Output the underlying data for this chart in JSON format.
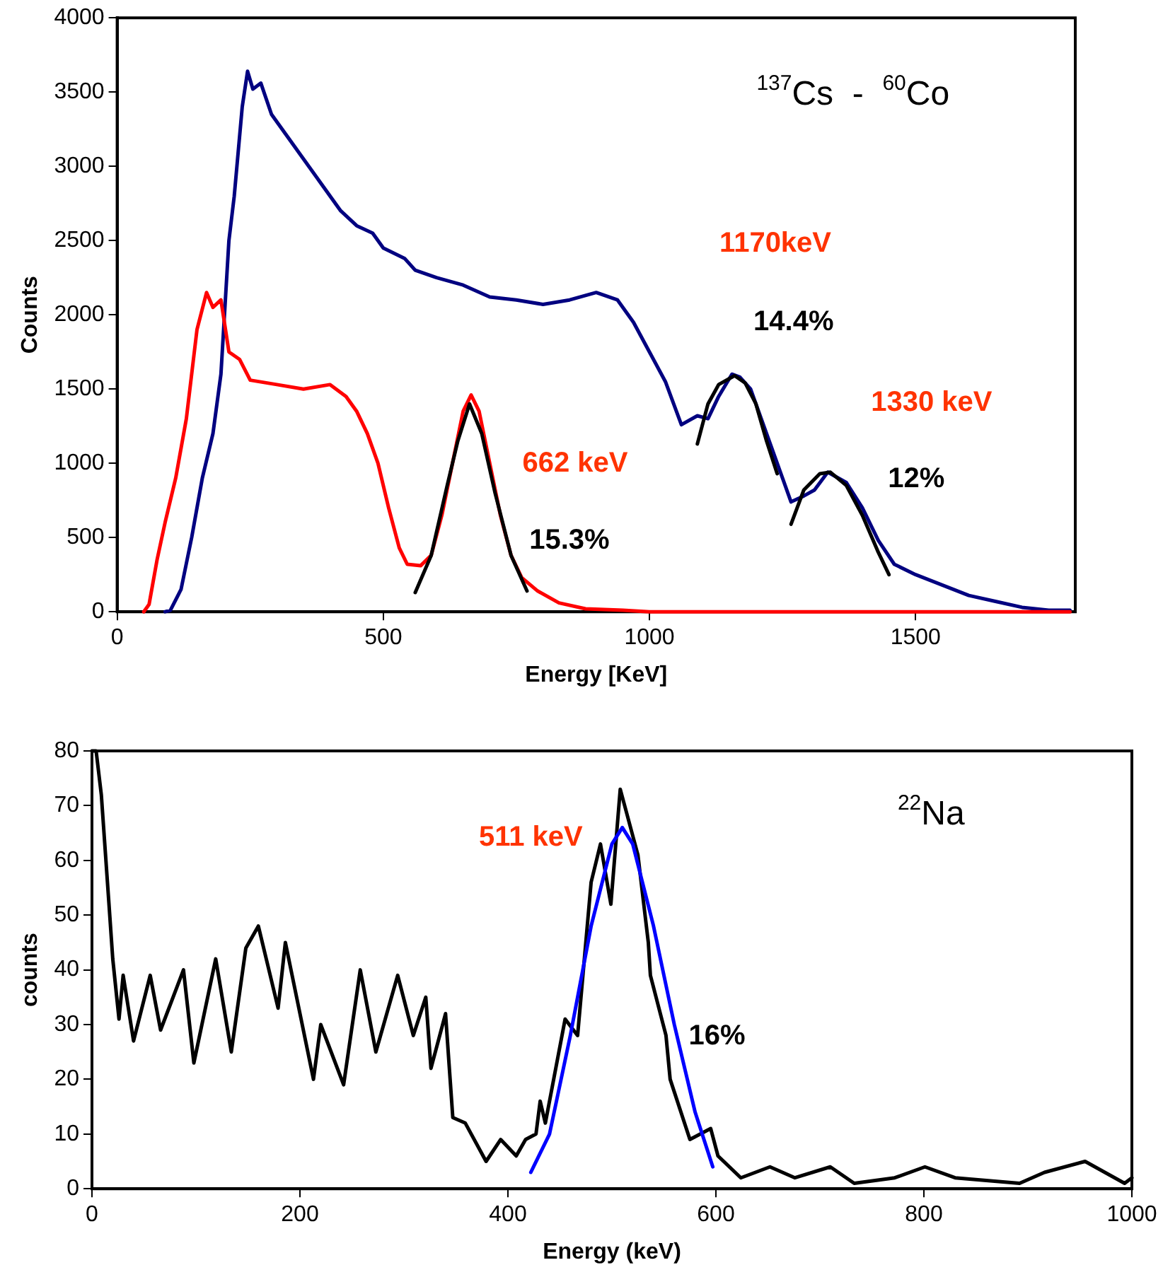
{
  "chart_data": [
    {
      "type": "line",
      "xlabel": "Energy [KeV]",
      "ylabel": "Counts",
      "xlim": [
        0,
        1800
      ],
      "xticks": [
        0,
        500,
        1000,
        1500
      ],
      "ylim": [
        0,
        4000
      ],
      "yticks": [
        0,
        500,
        1000,
        1500,
        2000,
        2500,
        3000,
        3500,
        4000
      ],
      "grid": false,
      "legend": false,
      "marker": "none",
      "line_style": "solid",
      "series": [
        {
          "color": "#000080",
          "x": [
            90,
            100,
            120,
            140,
            160,
            180,
            195,
            210,
            220,
            235,
            245,
            255,
            270,
            290,
            320,
            350,
            380,
            420,
            450,
            480,
            500,
            540,
            560,
            600,
            650,
            700,
            750,
            800,
            850,
            900,
            940,
            970,
            1000,
            1030,
            1060,
            1090,
            1110,
            1130,
            1155,
            1170,
            1190,
            1220,
            1250,
            1266,
            1290,
            1310,
            1335,
            1370,
            1400,
            1430,
            1460,
            1500,
            1550,
            1600,
            1650,
            1700,
            1750,
            1790
          ],
          "values": [
            0,
            10,
            150,
            500,
            900,
            1200,
            1600,
            2500,
            2800,
            3400,
            3640,
            3520,
            3560,
            3350,
            3200,
            3050,
            2900,
            2700,
            2600,
            2550,
            2450,
            2380,
            2300,
            2250,
            2200,
            2120,
            2100,
            2070,
            2100,
            2150,
            2100,
            1950,
            1750,
            1550,
            1260,
            1320,
            1300,
            1450,
            1600,
            1580,
            1500,
            1200,
            900,
            740,
            780,
            820,
            940,
            870,
            700,
            480,
            320,
            250,
            180,
            110,
            70,
            30,
            10,
            10
          ]
        },
        {
          "color": "#ff0000",
          "x": [
            50,
            60,
            75,
            90,
            110,
            130,
            150,
            168,
            180,
            195,
            210,
            230,
            250,
            300,
            350,
            400,
            430,
            450,
            470,
            490,
            510,
            530,
            545,
            570,
            590,
            610,
            630,
            650,
            665,
            680,
            700,
            720,
            740,
            760,
            790,
            830,
            880,
            950,
            1000,
            1790
          ],
          "values": [
            0,
            50,
            350,
            600,
            900,
            1300,
            1900,
            2150,
            2050,
            2100,
            1750,
            1700,
            1560,
            1530,
            1500,
            1530,
            1450,
            1350,
            1200,
            1000,
            700,
            430,
            320,
            310,
            380,
            650,
            1000,
            1350,
            1460,
            1350,
            1000,
            650,
            380,
            230,
            140,
            60,
            20,
            10,
            0,
            0
          ]
        },
        {
          "color": "#000000",
          "x": [
            560,
            590,
            620,
            640,
            662,
            685,
            710,
            740,
            770
          ],
          "values": [
            130,
            380,
            850,
            1150,
            1400,
            1200,
            800,
            380,
            140
          ]
        },
        {
          "color": "#000000",
          "x": [
            1090,
            1110,
            1130,
            1160,
            1180,
            1200,
            1220,
            1240
          ],
          "values": [
            1130,
            1400,
            1530,
            1590,
            1540,
            1400,
            1150,
            930
          ]
        },
        {
          "color": "#000000",
          "x": [
            1266,
            1290,
            1320,
            1340,
            1370,
            1400,
            1430,
            1450
          ],
          "values": [
            590,
            820,
            930,
            940,
            850,
            650,
            400,
            250
          ]
        }
      ],
      "annotations": [
        "$^{137}$Cs  -  $^{60}$Co",
        "1170keV",
        "14.4%",
        "1330 keV",
        "12%",
        "662 keV",
        "15.3%"
      ]
    },
    {
      "type": "line",
      "xlabel": "Energy (keV)",
      "ylabel": "counts",
      "xlim": [
        0,
        1000
      ],
      "xticks": [
        0,
        200,
        400,
        600,
        800,
        1000
      ],
      "ylim": [
        0,
        80
      ],
      "yticks": [
        0,
        10,
        20,
        30,
        40,
        50,
        60,
        70,
        80
      ],
      "grid": false,
      "legend": false,
      "marker": "none",
      "line_style": "solid",
      "series": [
        {
          "color": "#000000",
          "x": [
            0,
            4,
            9,
            16,
            20,
            26,
            30,
            40,
            56,
            66,
            88,
            98,
            119,
            134,
            148,
            160,
            179,
            186,
            213,
            220,
            242,
            258,
            273,
            294,
            309,
            321,
            326,
            340,
            347,
            359,
            379,
            393,
            408,
            417,
            427,
            431,
            436,
            455,
            467,
            480,
            489,
            499,
            508,
            525,
            535,
            537,
            552,
            556,
            575,
            595,
            602,
            624,
            652,
            676,
            710,
            733,
            772,
            801,
            830,
            892,
            916,
            955,
            993,
            1000
          ],
          "values": [
            80,
            80,
            72,
            53,
            42,
            31,
            39,
            27,
            39,
            29,
            40,
            23,
            42,
            25,
            44,
            48,
            33,
            45,
            20,
            30,
            19,
            40,
            25,
            39,
            28,
            35,
            22,
            32,
            13,
            12,
            5,
            9,
            6,
            9,
            10,
            16,
            12,
            31,
            28,
            56,
            63,
            52,
            73,
            61,
            45,
            39,
            28,
            20,
            9,
            11,
            6,
            2,
            4,
            2,
            4,
            1,
            2,
            4,
            2,
            1,
            3,
            5,
            1,
            2
          ]
        },
        {
          "color": "#0000ff",
          "x": [
            422,
            440,
            460,
            480,
            500,
            510,
            520,
            540,
            560,
            580,
            597
          ],
          "values": [
            3,
            10,
            28,
            48,
            63,
            66,
            63,
            48,
            30,
            14,
            4
          ]
        }
      ],
      "annotations": [
        "511 keV",
        "16%",
        "$^{22}$Na"
      ]
    }
  ]
}
